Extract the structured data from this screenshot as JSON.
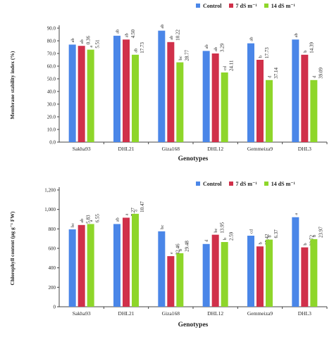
{
  "chart_data": [
    {
      "type": "bar",
      "ylabel": "Membrane stability index (%)",
      "xlabel": "Genotypes",
      "ylim": [
        0,
        90
      ],
      "yticks": [
        "0.0",
        "10.0",
        "20.0",
        "30.0",
        "40.0",
        "50.0",
        "60.0",
        "70.0",
        "80.0",
        "90.0"
      ],
      "categories": [
        "Sakha93",
        "DHL21",
        "Giza168",
        "DHL12",
        "Gemmeiza9",
        "DHL3"
      ],
      "series": [
        {
          "name": "Control",
          "color": "#4a86e8",
          "values": [
            77,
            84,
            88,
            72,
            78,
            81
          ],
          "letters": [
            "ab",
            "ab",
            "ab",
            "ab",
            "ab",
            "ab"
          ],
          "labels": [
            "",
            "",
            "",
            "",
            "",
            ""
          ]
        },
        {
          "name": "7 dS m⁻¹",
          "color": "#d0304a",
          "values": [
            76,
            81,
            79,
            70,
            65,
            69
          ],
          "letters": [
            "ab",
            "ab",
            "ab",
            "ab",
            "b",
            "b"
          ],
          "labels": [
            "0.36",
            "4.50",
            "10.22",
            "3.29",
            "17.73",
            "14.39"
          ]
        },
        {
          "name": "14 dS m⁻¹",
          "color": "#8ed62a",
          "values": [
            73,
            69,
            63,
            55,
            49,
            49
          ],
          "letters": [
            "a",
            "ab",
            "bc",
            "cd",
            "d",
            "d"
          ],
          "labels": [
            "5.51",
            "17.73",
            "28.77",
            "24.11",
            "37.14",
            "39.09"
          ]
        }
      ],
      "grid": false,
      "legend": "top-right"
    },
    {
      "type": "bar",
      "ylabel": "Chlorophyll content (μg g⁻¹ FW)",
      "xlabel": "Genotypes",
      "ylim": [
        0,
        1200
      ],
      "yticks": [
        "0",
        "200",
        "400",
        "600",
        "800",
        "1,000",
        "1,200"
      ],
      "categories": [
        "Sakha93",
        "DHL21",
        "Giza168",
        "DHL12",
        "Gemmeiza9",
        "DHL3"
      ],
      "series": [
        {
          "name": "Control",
          "color": "#4a86e8",
          "values": [
            795,
            850,
            775,
            645,
            730,
            920
          ],
          "letters": [
            "bc",
            "ab",
            "bc",
            "d",
            "cd",
            "a"
          ],
          "labels": [
            "",
            "",
            "",
            "",
            "",
            ""
          ]
        },
        {
          "name": "7 dS m⁻¹",
          "color": "#d0304a",
          "values": [
            840,
            915,
            520,
            740,
            620,
            610
          ],
          "letters": [
            "ab",
            "a",
            "e",
            "bc",
            "b",
            "b"
          ],
          "labels": [
            "5.83",
            "7.27",
            "32.46",
            "13.95",
            "15.42",
            "33.72"
          ]
        },
        {
          "name": "14 dS m⁻¹",
          "color": "#8ed62a",
          "values": [
            850,
            955,
            550,
            665,
            690,
            695
          ],
          "letters": [
            "a",
            "a",
            "b",
            "b",
            "b",
            "b"
          ],
          "labels": [
            "6.55",
            "10.47",
            "29.48",
            "2.59",
            "6.37",
            "23.97"
          ]
        }
      ],
      "grid": false,
      "legend": "top-right"
    }
  ]
}
